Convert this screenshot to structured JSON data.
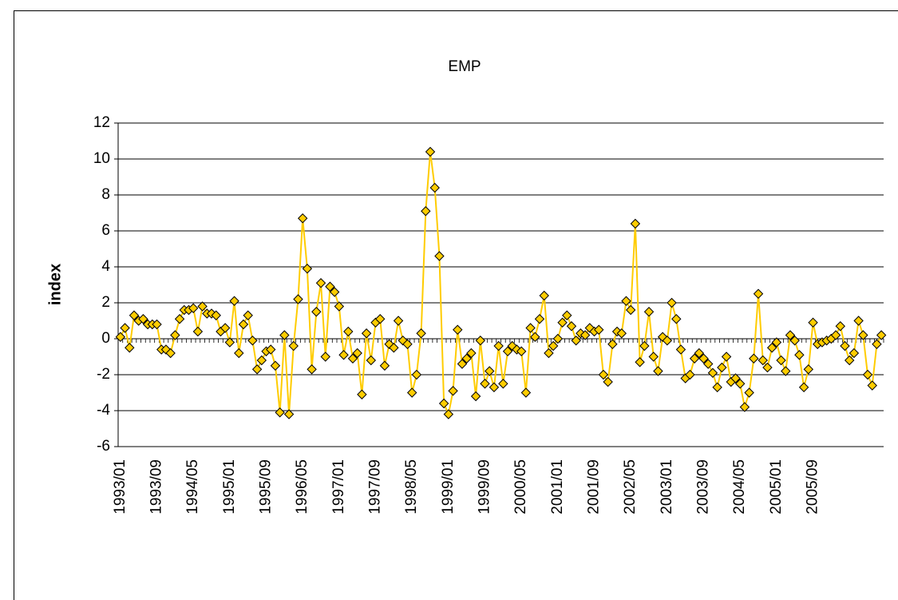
{
  "chart_data": {
    "type": "line",
    "title": "EMP",
    "y_label": "index",
    "categories": [
      "1993/01",
      null,
      null,
      null,
      null,
      null,
      null,
      null,
      "1993/09",
      null,
      null,
      null,
      null,
      null,
      null,
      null,
      "1994/05",
      null,
      null,
      null,
      null,
      null,
      null,
      null,
      "1995/01",
      null,
      null,
      null,
      null,
      null,
      null,
      null,
      "1995/09",
      null,
      null,
      null,
      null,
      null,
      null,
      null,
      "1996/05",
      null,
      null,
      null,
      null,
      null,
      null,
      null,
      "1997/01",
      null,
      null,
      null,
      null,
      null,
      null,
      null,
      "1997/09",
      null,
      null,
      null,
      null,
      null,
      null,
      null,
      "1998/05",
      null,
      null,
      null,
      null,
      null,
      null,
      null,
      "1999/01",
      null,
      null,
      null,
      null,
      null,
      null,
      null,
      "1999/09",
      null,
      null,
      null,
      null,
      null,
      null,
      null,
      "2000/05",
      null,
      null,
      null,
      null,
      null,
      null,
      null,
      "2001/01",
      null,
      null,
      null,
      null,
      null,
      null,
      null,
      "2001/09",
      null,
      null,
      null,
      null,
      null,
      null,
      null,
      "2002/05",
      null,
      null,
      null,
      null,
      null,
      null,
      null,
      "2003/01",
      null,
      null,
      null,
      null,
      null,
      null,
      null,
      "2003/09",
      null,
      null,
      null,
      null,
      null,
      null,
      null,
      "2004/05",
      null,
      null,
      null,
      null,
      null,
      null,
      null,
      "2005/01",
      null,
      null,
      null,
      null,
      null,
      null,
      null,
      "2005/09",
      null,
      null,
      null,
      null,
      null,
      null,
      null,
      null,
      null,
      null,
      null,
      null,
      null,
      null,
      null
    ],
    "values": [
      0.1,
      0.6,
      -0.5,
      1.3,
      1.0,
      1.1,
      0.8,
      0.8,
      0.8,
      -0.6,
      -0.6,
      -0.8,
      0.2,
      1.1,
      1.6,
      1.6,
      1.7,
      0.4,
      1.8,
      1.4,
      1.4,
      1.3,
      0.4,
      0.6,
      -0.2,
      2.1,
      -0.8,
      0.8,
      1.3,
      -0.1,
      -1.7,
      -1.2,
      -0.7,
      -0.6,
      -1.5,
      -4.1,
      0.2,
      -4.2,
      -0.4,
      2.2,
      6.7,
      3.9,
      -1.7,
      1.5,
      3.1,
      -1.0,
      2.9,
      2.6,
      1.8,
      -0.9,
      0.4,
      -1.1,
      -0.8,
      -3.1,
      0.3,
      -1.2,
      0.9,
      1.1,
      -1.5,
      -0.3,
      -0.5,
      1.0,
      -0.1,
      -0.3,
      -3.0,
      -2.0,
      0.3,
      7.1,
      10.4,
      8.4,
      4.6,
      -3.6,
      -4.2,
      -2.9,
      0.5,
      -1.4,
      -1.1,
      -0.8,
      -3.2,
      -0.1,
      -2.5,
      -1.8,
      -2.7,
      -0.4,
      -2.5,
      -0.7,
      -0.4,
      -0.6,
      -0.7,
      -3.0,
      0.6,
      0.1,
      1.1,
      2.4,
      -0.8,
      -0.4,
      0.0,
      0.9,
      1.3,
      0.7,
      -0.1,
      0.3,
      0.2,
      0.6,
      0.4,
      0.5,
      -2.0,
      -2.4,
      -0.3,
      0.4,
      0.3,
      2.1,
      1.6,
      6.4,
      -1.3,
      -0.4,
      1.5,
      -1.0,
      -1.8,
      0.1,
      -0.1,
      2.0,
      1.1,
      -0.6,
      -2.2,
      -2.0,
      -1.1,
      -0.8,
      -1.1,
      -1.4,
      -1.9,
      -2.7,
      -1.6,
      -1.0,
      -2.4,
      -2.2,
      -2.5,
      -3.8,
      -3.0,
      -1.1,
      2.5,
      -1.2,
      -1.6,
      -0.5,
      -0.2,
      -1.2,
      -1.8,
      0.2,
      -0.1,
      -0.9,
      -2.7,
      -1.7,
      0.9,
      -0.3,
      -0.2,
      -0.1,
      0.0,
      0.2,
      0.7,
      -0.4,
      -1.2,
      -0.8,
      1.0,
      0.2,
      -2.0,
      -2.6,
      -0.3,
      0.2
    ],
    "color": "#FFCC00",
    "ylim": [
      -6,
      12
    ],
    "yticks": [
      -6,
      -4,
      -2,
      0,
      2,
      4,
      6,
      8,
      10,
      12
    ],
    "grid": true
  }
}
